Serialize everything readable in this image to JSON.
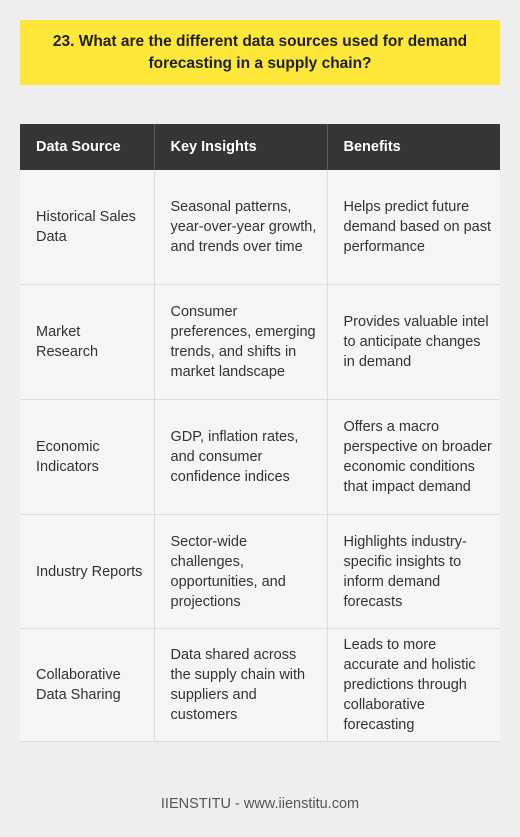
{
  "title": "23. What are the different data sources used for demand forecasting in a supply chain?",
  "table": {
    "headers": [
      "Data Source",
      "Key Insights",
      "Benefits"
    ],
    "rows": [
      {
        "source": "Historical Sales Data",
        "insights": "Seasonal patterns, year-over-year growth, and trends over time",
        "benefits": "Helps predict future demand based on past performance"
      },
      {
        "source": "Market Research",
        "insights": "Consumer preferences, emerging trends, and shifts in market landscape",
        "benefits": "Provides valuable intel to anticipate changes in demand"
      },
      {
        "source": "Economic Indicators",
        "insights": "GDP, inflation rates, and consumer confidence indices",
        "benefits": "Offers a macro perspective on broader economic conditions that impact demand"
      },
      {
        "source": "Industry Reports",
        "insights": "Sector-wide challenges, opportunities, and projections",
        "benefits": "Highlights industry-specific insights to inform demand forecasts"
      },
      {
        "source": "Collaborative Data Sharing",
        "insights": "Data shared across the supply chain with suppliers and customers",
        "benefits": "Leads to more accurate and holistic predictions through collaborative forecasting"
      }
    ]
  },
  "footer": "IIENSTITU - www.iienstitu.com",
  "colors": {
    "title_background": "#fde83a",
    "header_background": "#353535",
    "page_background": "#eeeeee",
    "cell_background": "#f5f5f5"
  }
}
